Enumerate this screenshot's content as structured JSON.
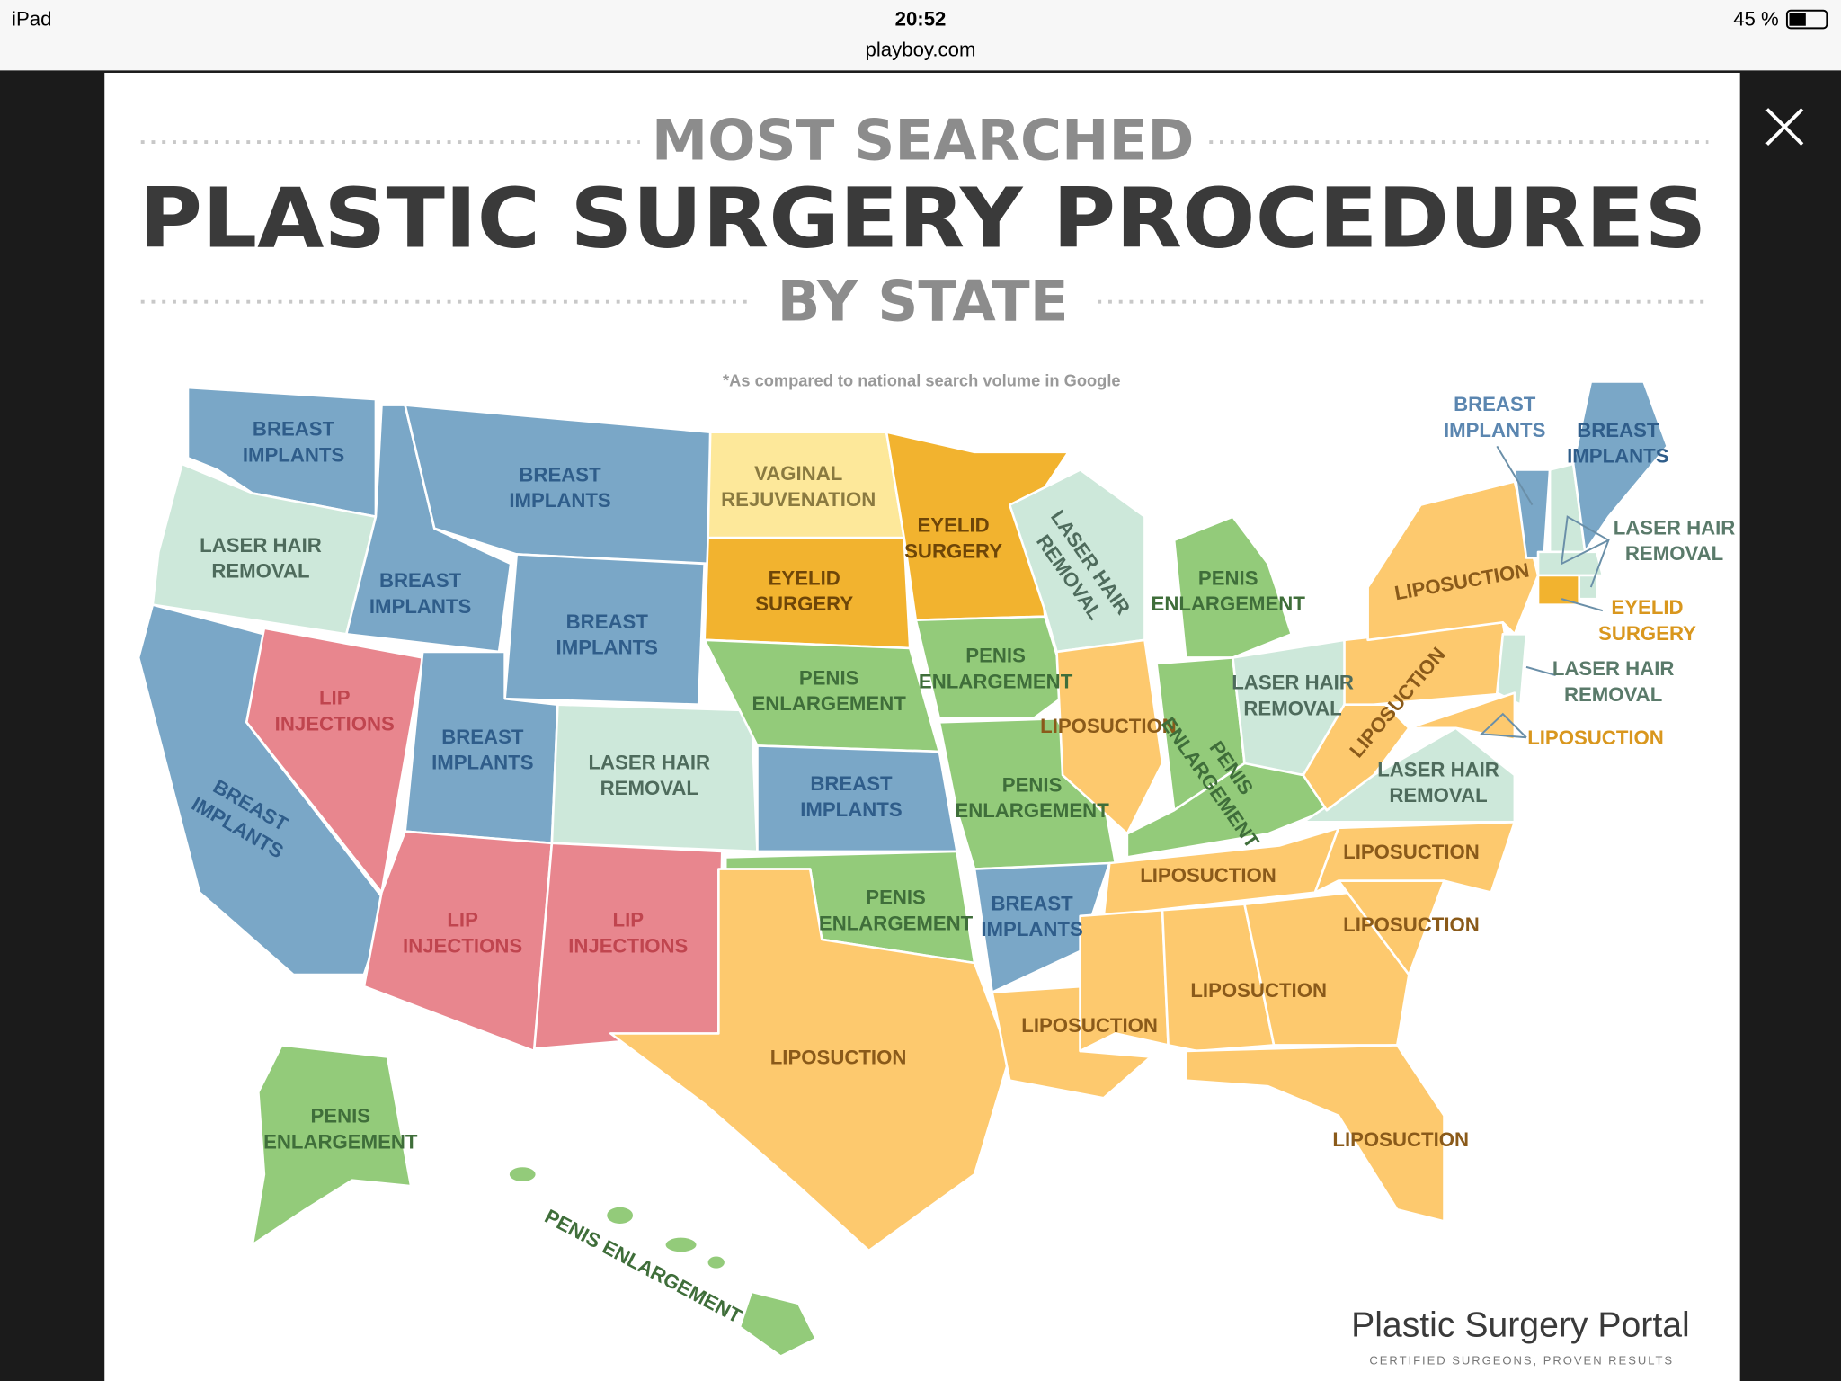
{
  "status_bar": {
    "device": "iPad",
    "time": "20:52",
    "battery": "45 %",
    "url": "playboy.com"
  },
  "header": {
    "kicker": "MOST SEARCHED",
    "title": "PLASTIC SURGERY PROCEDURES",
    "subtitle": "BY STATE",
    "footnote": "*As compared to national search volume in Google"
  },
  "map": {
    "labels": [
      {
        "lines": [
          "BREAST",
          "IMPLANTS"
        ]
      },
      {
        "lines": [
          "LASER HAIR",
          "REMOVAL"
        ]
      },
      {
        "lines": [
          "BREAST",
          "IMPLANTS"
        ]
      },
      {
        "lines": [
          "LIP",
          "INJECTIONS"
        ]
      },
      {
        "lines": [
          "BREAST",
          "IMPLANTS"
        ]
      },
      {
        "lines": [
          "BREAST",
          "IMPLANTS"
        ]
      },
      {
        "lines": [
          "BREAST",
          "IMPLANTS"
        ]
      },
      {
        "lines": [
          "BREAST",
          "IMPLANTS"
        ]
      },
      {
        "lines": [
          "LIP",
          "INJECTIONS"
        ]
      },
      {
        "lines": [
          "LASER HAIR",
          "REMOVAL"
        ]
      },
      {
        "lines": [
          "LIP",
          "INJECTIONS"
        ]
      },
      {
        "lines": [
          "VAGINAL",
          "REJUVENATION"
        ]
      },
      {
        "lines": [
          "EYELID",
          "SURGERY"
        ]
      },
      {
        "lines": [
          "PENIS",
          "ENLARGEMENT"
        ]
      },
      {
        "lines": [
          "BREAST",
          "IMPLANTS"
        ]
      },
      {
        "lines": [
          "PENIS",
          "ENLARGEMENT"
        ]
      },
      {
        "lines": [
          "LIPOSUCTION"
        ]
      },
      {
        "lines": [
          "EYELID",
          "SURGERY"
        ]
      },
      {
        "lines": [
          "PENIS",
          "ENLARGEMENT"
        ]
      },
      {
        "lines": [
          "PENIS",
          "ENLARGEMENT"
        ]
      },
      {
        "lines": [
          "BREAST",
          "IMPLANTS"
        ]
      },
      {
        "lines": [
          "LIPOSUCTION"
        ]
      },
      {
        "lines": [
          "LASER HAIR",
          "REMOVAL"
        ]
      },
      {
        "lines": [
          "LIPOSUCTION"
        ]
      },
      {
        "lines": [
          "PENIS",
          "ENLARGEMENT"
        ]
      },
      {
        "lines": [
          "PENIS",
          "ENLARGEMENT"
        ]
      },
      {
        "lines": [
          "LASER HAIR",
          "REMOVAL"
        ]
      },
      {
        "lines": [
          "LIPOSUCTION"
        ]
      },
      {
        "lines": [
          "LIPOSUCTION"
        ]
      },
      {
        "lines": [
          "LIPOSUCTION"
        ]
      },
      {
        "lines": [
          "LIPOSUCTION"
        ]
      },
      {
        "lines": [
          "LIPOSUCTION"
        ]
      },
      {
        "lines": [
          "LASER HAIR",
          "REMOVAL"
        ]
      },
      {
        "lines": [
          "LIPOSUCTION"
        ]
      },
      {
        "lines": [
          "LIPOSUCTION"
        ]
      },
      {
        "lines": [
          "BREAST",
          "IMPLANTS"
        ]
      },
      {
        "lines": [
          "BREAST",
          "IMPLANTS"
        ]
      },
      {
        "lines": [
          "LASER HAIR",
          "REMOVAL"
        ]
      },
      {
        "lines": [
          "EYELID",
          "SURGERY"
        ]
      },
      {
        "lines": [
          "LASER HAIR",
          "REMOVAL"
        ]
      },
      {
        "lines": [
          "LIPOSUCTION"
        ]
      },
      {
        "lines": [
          "PENIS",
          "ENLARGEMENT"
        ]
      },
      {
        "lines": [
          "PENIS ENLARGEMENT"
        ]
      }
    ]
  },
  "footer": {
    "brand": "Plastic Surgery Portal",
    "tagline": "CERTIFIED SURGEONS, PROVEN RESULTS"
  }
}
